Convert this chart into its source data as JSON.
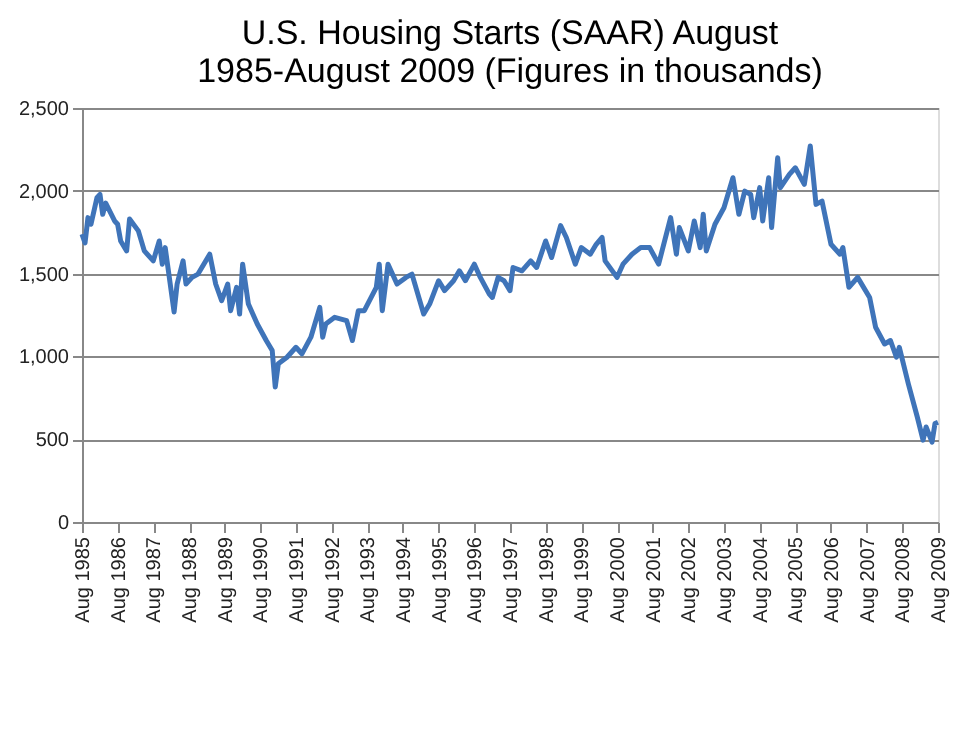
{
  "chart_data": {
    "type": "line",
    "title": "U.S. Housing Starts (SAAR) August 1985-August 2009 (Figures in thousands)",
    "x": [
      "1985-08",
      "1985-09",
      "1985-10",
      "1985-11",
      "1986-01",
      "1986-02",
      "1986-03",
      "1986-04",
      "1986-07",
      "1986-08",
      "1986-09",
      "1986-11",
      "1986-12",
      "1987-03",
      "1987-05",
      "1987-08",
      "1987-10",
      "1987-11",
      "1987-12",
      "1988-03",
      "1988-04",
      "1988-06",
      "1988-07",
      "1988-09",
      "1988-11",
      "1989-03",
      "1989-05",
      "1989-07",
      "1989-09",
      "1989-10",
      "1989-12",
      "1990-01",
      "1990-02",
      "1990-04",
      "1990-07",
      "1990-10",
      "1990-12",
      "1991-01",
      "1991-02",
      "1991-05",
      "1991-08",
      "1991-10",
      "1992-01",
      "1992-04",
      "1992-05",
      "1992-06",
      "1992-09",
      "1993-01",
      "1993-03",
      "1993-05",
      "1993-07",
      "1993-11",
      "1993-12",
      "1994-01",
      "1994-03",
      "1994-06",
      "1994-09",
      "1994-11",
      "1995-03",
      "1995-05",
      "1995-08",
      "1995-10",
      "1996-01",
      "1996-03",
      "1996-05",
      "1996-08",
      "1996-10",
      "1997-01",
      "1997-02",
      "1997-04",
      "1997-06",
      "1997-08",
      "1997-09",
      "1997-12",
      "1998-03",
      "1998-05",
      "1998-08",
      "1998-10",
      "1999-01",
      "1999-03",
      "1999-06",
      "1999-08",
      "1999-11",
      "2000-01",
      "2000-03",
      "2000-04",
      "2000-08",
      "2000-10",
      "2001-01",
      "2001-04",
      "2001-07",
      "2001-10",
      "2002-02",
      "2002-04",
      "2002-05",
      "2002-08",
      "2002-10",
      "2002-12",
      "2003-01",
      "2003-02",
      "2003-05",
      "2003-08",
      "2003-11",
      "2004-01",
      "2004-03",
      "2004-05",
      "2004-06",
      "2004-08",
      "2004-09",
      "2004-11",
      "2004-12",
      "2005-02",
      "2005-03",
      "2005-06",
      "2005-08",
      "2005-11",
      "2006-01",
      "2006-03",
      "2006-05",
      "2006-08",
      "2006-11",
      "2006-12",
      "2007-02",
      "2007-05",
      "2007-09",
      "2007-11",
      "2008-02",
      "2008-04",
      "2008-06",
      "2008-07",
      "2008-10",
      "2009-01",
      "2009-03",
      "2009-04",
      "2009-06",
      "2009-07",
      "2009-08"
    ],
    "series": [
      {
        "color": "#3f74b9",
        "values": [
          1738,
          1685,
          1838,
          1798,
          1958,
          1978,
          1858,
          1926,
          1818,
          1798,
          1697,
          1637,
          1830,
          1758,
          1637,
          1577,
          1697,
          1557,
          1657,
          1268,
          1437,
          1577,
          1437,
          1477,
          1497,
          1617,
          1437,
          1336,
          1437,
          1276,
          1417,
          1256,
          1557,
          1316,
          1196,
          1096,
          1035,
          815,
          955,
          995,
          1055,
          1015,
          1116,
          1296,
          1116,
          1196,
          1236,
          1216,
          1096,
          1276,
          1276,
          1417,
          1557,
          1276,
          1557,
          1437,
          1477,
          1497,
          1256,
          1316,
          1457,
          1397,
          1457,
          1517,
          1457,
          1557,
          1477,
          1376,
          1356,
          1477,
          1457,
          1397,
          1537,
          1517,
          1577,
          1537,
          1697,
          1597,
          1790,
          1718,
          1557,
          1657,
          1617,
          1677,
          1718,
          1577,
          1477,
          1557,
          1617,
          1657,
          1657,
          1557,
          1838,
          1617,
          1778,
          1637,
          1818,
          1657,
          1858,
          1637,
          1798,
          1898,
          2079,
          1858,
          1998,
          1978,
          1838,
          2019,
          1818,
          2079,
          1778,
          2199,
          2019,
          2099,
          2139,
          2039,
          2271,
          1918,
          1938,
          1677,
          1617,
          1657,
          1417,
          1477,
          1356,
          1176,
          1075,
          1096,
          995,
          1055,
          835,
          634,
          494,
          574,
          482,
          594,
          602
        ]
      }
    ],
    "xlim": [
      "1985-08",
      "2009-08"
    ],
    "xticks": [
      {
        "value": "1985-08",
        "label": "Aug 1985"
      },
      {
        "value": "1986-08",
        "label": "Aug 1986"
      },
      {
        "value": "1987-08",
        "label": "Aug 1987"
      },
      {
        "value": "1988-08",
        "label": "Aug 1988"
      },
      {
        "value": "1989-08",
        "label": "Aug 1989"
      },
      {
        "value": "1990-08",
        "label": "Aug 1990"
      },
      {
        "value": "1991-08",
        "label": "Aug 1991"
      },
      {
        "value": "1992-08",
        "label": "Aug 1992"
      },
      {
        "value": "1993-08",
        "label": "Aug 1993"
      },
      {
        "value": "1994-08",
        "label": "Aug 1994"
      },
      {
        "value": "1995-08",
        "label": "Aug 1995"
      },
      {
        "value": "1996-08",
        "label": "Aug 1996"
      },
      {
        "value": "1997-08",
        "label": "Aug 1997"
      },
      {
        "value": "1998-08",
        "label": "Aug 1998"
      },
      {
        "value": "1999-08",
        "label": "Aug 1999"
      },
      {
        "value": "2000-08",
        "label": "Aug 2000"
      },
      {
        "value": "2001-08",
        "label": "Aug 2001"
      },
      {
        "value": "2002-08",
        "label": "Aug 2002"
      },
      {
        "value": "2003-08",
        "label": "Aug 2003"
      },
      {
        "value": "2004-08",
        "label": "Aug 2004"
      },
      {
        "value": "2005-08",
        "label": "Aug 2005"
      },
      {
        "value": "2006-08",
        "label": "Aug 2006"
      },
      {
        "value": "2007-08",
        "label": "Aug 2007"
      },
      {
        "value": "2008-08",
        "label": "Aug 2008"
      },
      {
        "value": "2009-08",
        "label": "Aug 2009"
      }
    ],
    "ylim": [
      0,
      2500
    ],
    "yticks": [
      0,
      500,
      {
        "value": 1000,
        "label": "1,000"
      },
      {
        "value": 1500,
        "label": "1,500"
      },
      {
        "value": 2000,
        "label": "2,000"
      },
      {
        "value": 2500,
        "label": "2,500"
      }
    ],
    "grid": "y",
    "legend": false,
    "marker": "none",
    "line_style": "solid"
  }
}
